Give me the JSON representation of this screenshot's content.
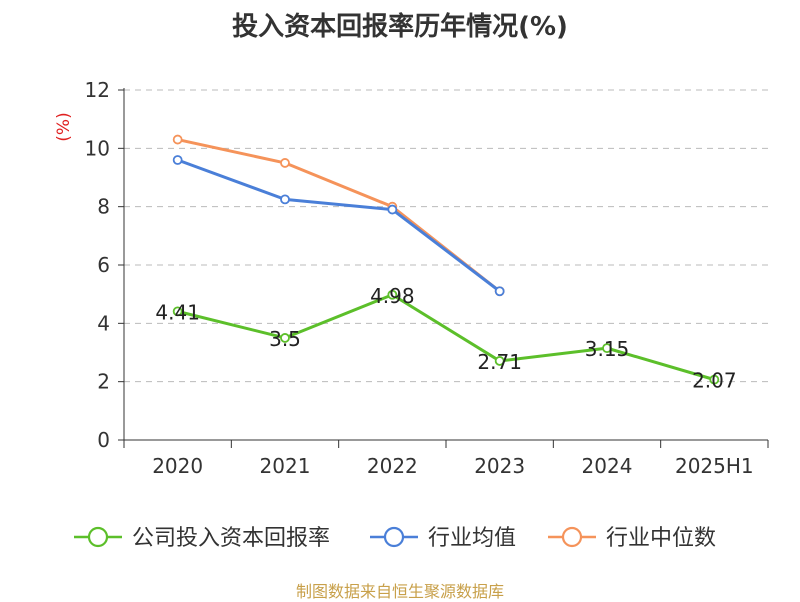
{
  "chart_data": {
    "type": "line",
    "title": "投入资本回报率历年情况(%)",
    "ylabel": "(%)",
    "categories": [
      "2020",
      "2021",
      "2022",
      "2023",
      "2024",
      "2025H1"
    ],
    "ylim": [
      0,
      12
    ],
    "yticks": [
      0,
      2,
      4,
      6,
      8,
      10,
      12
    ],
    "grid": true,
    "legend_position": "bottom",
    "series": [
      {
        "name": "公司投入资本回报率",
        "color": "#5cbf2a",
        "values": [
          4.41,
          3.5,
          4.98,
          2.71,
          3.15,
          2.07
        ],
        "labels": [
          "4.41",
          "3.5",
          "4.98",
          "2.71",
          "3.15",
          "2.07"
        ]
      },
      {
        "name": "行业均值",
        "color": "#4a7fd8",
        "values": [
          9.6,
          8.25,
          7.9,
          5.1,
          null,
          null
        ]
      },
      {
        "name": "行业中位数",
        "color": "#f5935a",
        "values": [
          10.3,
          9.5,
          8.0,
          5.1,
          null,
          null
        ]
      }
    ],
    "ylabel_color": "#e02020",
    "source": "制图数据来自恒生聚源数据库",
    "source_color": "#c8a04a"
  }
}
